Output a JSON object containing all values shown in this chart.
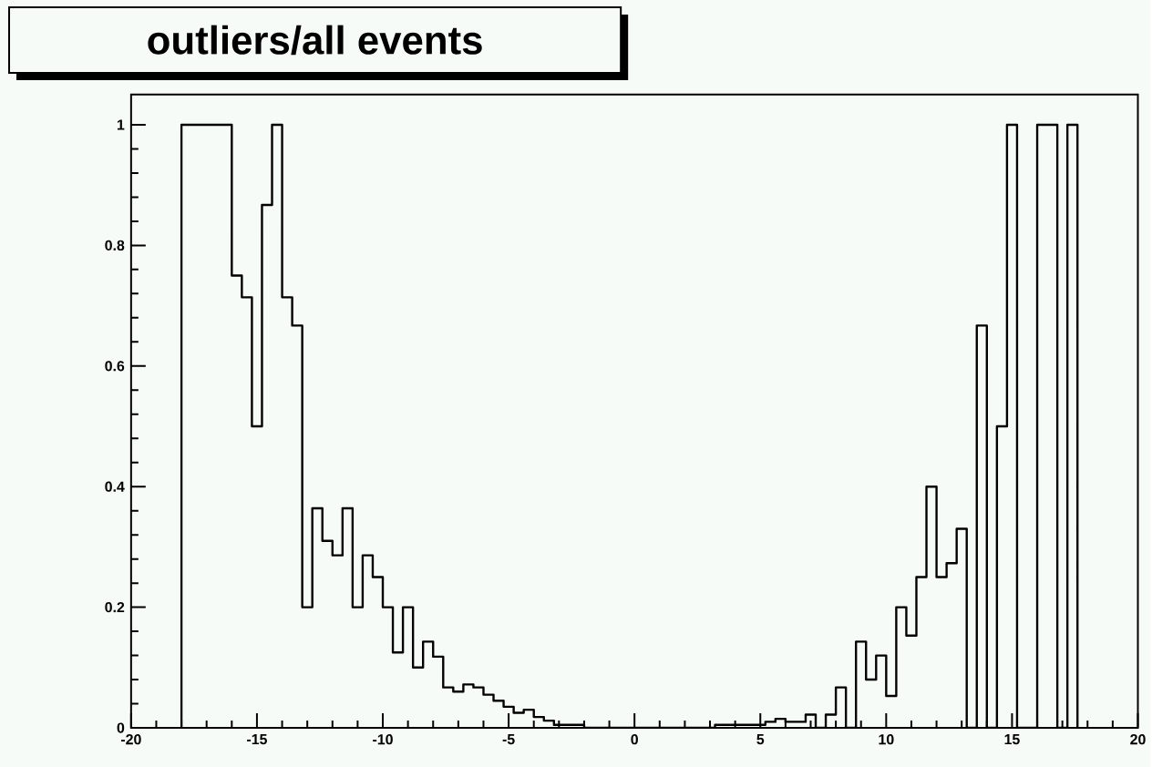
{
  "chart_data": {
    "type": "histogram",
    "title": "outliers/all events",
    "bins": [
      -18,
      -17.6,
      -17.2,
      -16.8,
      -16.4,
      -16,
      -15.6,
      -15.2,
      -14.8,
      -14.4,
      -14,
      -13.6,
      -13.2,
      -12.8,
      -12.4,
      -12,
      -11.6,
      -11.2,
      -10.8,
      -10.4,
      -10,
      -9.6,
      -9.2,
      -8.8,
      -8.4,
      -8,
      -7.6,
      -7.2,
      -6.8,
      -6.4,
      -6,
      -5.6,
      -5.2,
      -4.8,
      -4.4,
      -4,
      -3.6,
      -3.2,
      -2.8,
      -2.4,
      -2,
      -1.6,
      -1.2,
      -0.8,
      -0.4,
      0,
      0.4,
      0.8,
      1.2,
      1.6,
      2,
      2.4,
      2.8,
      3.2,
      3.6,
      4,
      4.4,
      4.8,
      5.2,
      5.6,
      6,
      6.4,
      6.8,
      7.2,
      7.6,
      8,
      8.4,
      8.8,
      9.2,
      9.6,
      10,
      10.4,
      10.8,
      11.2,
      11.6,
      12,
      12.4,
      12.8,
      13.2,
      13.6,
      14,
      14.4,
      14.8,
      15.2,
      15.6,
      16,
      16.4,
      16.8,
      17.2,
      17.6
    ],
    "values": [
      1,
      1,
      1,
      1,
      1,
      0.75,
      0.714,
      0.5,
      0.867,
      1,
      0.714,
      0.667,
      0.2,
      0.364,
      0.31,
      0.286,
      0.364,
      0.2,
      0.286,
      0.25,
      0.2,
      0.125,
      0.2,
      0.1,
      0.143,
      0.118,
      0.067,
      0.06,
      0.072,
      0.067,
      0.055,
      0.045,
      0.035,
      0.025,
      0.03,
      0.018,
      0.012,
      0.005,
      0.005,
      0.005,
      0,
      0,
      0,
      0,
      0,
      0,
      0,
      0,
      0,
      0,
      0,
      0,
      0,
      0.005,
      0.005,
      0.005,
      0.005,
      0.005,
      0.01,
      0.015,
      0.01,
      0.01,
      0.022,
      0,
      0.022,
      0.067,
      0,
      0.143,
      0.08,
      0.12,
      0.053,
      0.2,
      0.153,
      0.25,
      0.4,
      0.25,
      0.273,
      0.33,
      0,
      0.667,
      0,
      0.5,
      1,
      0,
      0,
      1,
      1,
      0,
      1
    ],
    "color": "#000000",
    "xlim": [
      -20,
      20
    ],
    "ylim": [
      0,
      1.05
    ],
    "xticks": [
      -20,
      -15,
      -10,
      -5,
      0,
      5,
      10,
      15,
      20
    ],
    "yticks": [
      0,
      0.2,
      0.4,
      0.6,
      0.8,
      1
    ],
    "grid": false,
    "marker": "none",
    "line_style": "solid"
  }
}
